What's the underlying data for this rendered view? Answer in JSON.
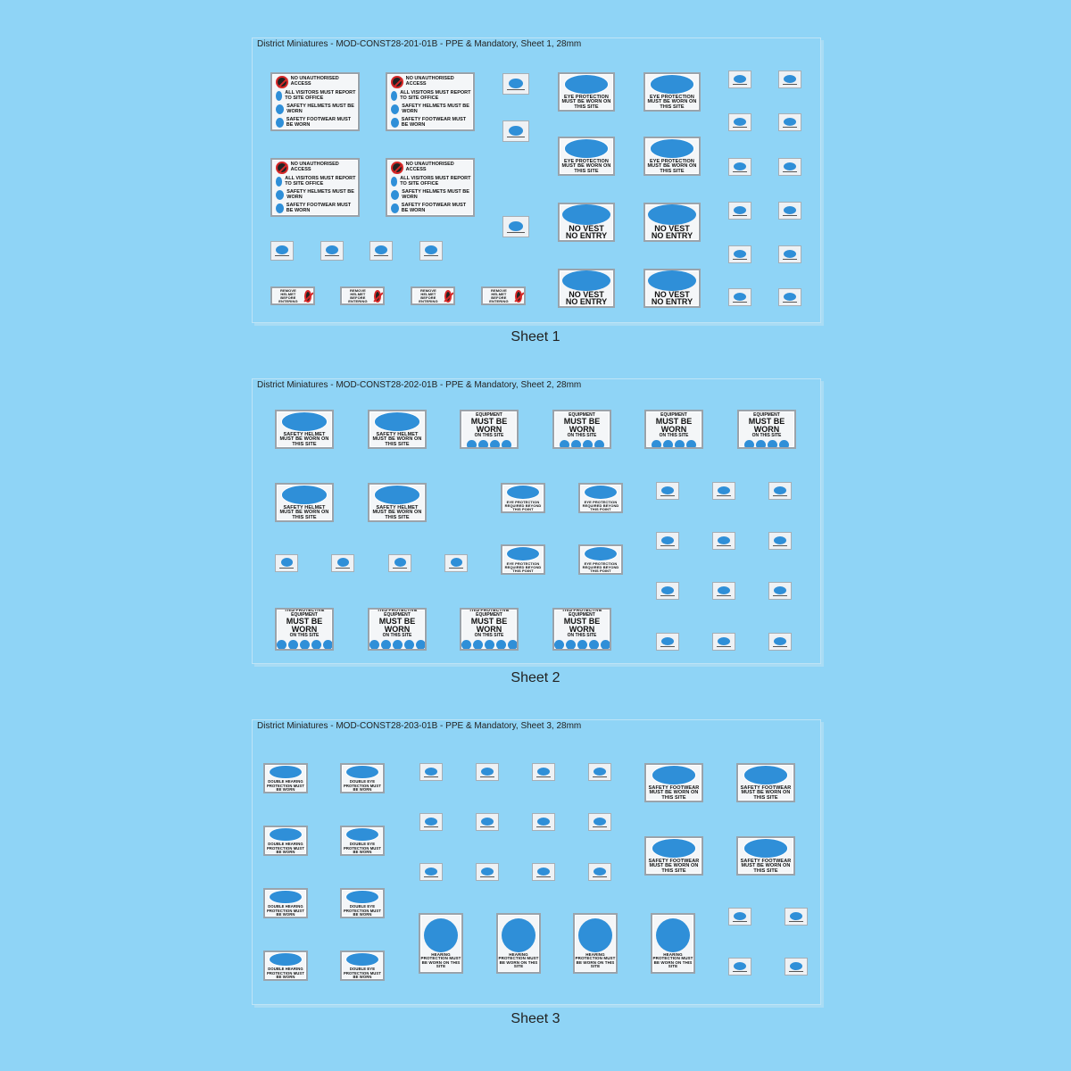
{
  "sheets": [
    {
      "header": "District Miniatures - MOD-CONST28-201-01B - PPE & Mandatory, Sheet 1, 28mm",
      "caption": "Sheet 1"
    },
    {
      "header": "District Miniatures - MOD-CONST28-202-01B - PPE & Mandatory, Sheet 2, 28mm",
      "caption": "Sheet 2"
    },
    {
      "header": "District Miniatures - MOD-CONST28-203-01B - PPE & Mandatory, Sheet 3, 28mm",
      "caption": "Sheet 3"
    }
  ],
  "signs": {
    "visitor": [
      "NO UNAUTHORISED ACCESS",
      "ALL VISITORS MUST REPORT TO SITE OFFICE",
      "SAFETY HELMETS MUST BE WORN",
      "SAFETY FOOTWEAR MUST BE WORN"
    ],
    "eye": "EYE PROTECTION MUST BE WORN ON THIS SITE",
    "novest": [
      "NO VEST",
      "NO ENTRY"
    ],
    "remove_helmet": "REMOVE HELMET BEFORE ENTERING",
    "helmet": "SAFETY HELMET MUST BE WORN ON THIS SITE",
    "ppe_head": "THIS PROTECTIVE EQUIPMENT",
    "ppe_big": "MUST BE WORN",
    "ppe_sub": "ON THIS SITE",
    "eye_required": "EYE PROTECTION REQUIRED BEYOND THIS POINT",
    "double_hearing": "DOUBLE HEARING PROTECTION MUST BE WORN",
    "double_eye": "DOUBLE EYE PROTECTION MUST BE WORN",
    "footwear": "SAFETY FOOTWEAR MUST BE WORN ON THIS SITE",
    "hearing": "HEARING PROTECTION MUST BE WORN ON THIS SITE"
  },
  "colors": {
    "background": "#8fd4f6",
    "mandatory_blue": "#2f8fd8",
    "prohibition_red": "#d62828"
  }
}
